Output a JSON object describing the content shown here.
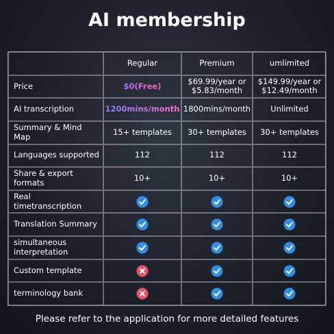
{
  "title": "AI membership",
  "table": {
    "header": [
      "",
      "Regular",
      "Premium",
      "umlimited"
    ],
    "rows": [
      [
        "Price",
        "$0(Free)",
        "$69.99/year or $5.83/month",
        "$149.99/year or $12.49/month"
      ],
      [
        "AI transcription",
        "1200mins/month",
        "1800mins/month",
        "Unlimited"
      ],
      [
        "Summary & Mind Map",
        "15+ templates",
        "30+ templates",
        "30+ templates"
      ],
      [
        "Languages supported",
        "112",
        "112",
        "112"
      ],
      [
        "Share & export formats",
        "10+",
        "10+",
        "10+"
      ],
      [
        "Real timetranscription",
        true,
        true,
        true
      ],
      [
        "Translation Summary",
        true,
        true,
        true
      ],
      [
        "simultaneous interpretation",
        true,
        true,
        true
      ],
      [
        "Custom template",
        false,
        true,
        true
      ],
      [
        "terminology bank",
        false,
        true,
        true
      ]
    ]
  },
  "footer": "Please refer to the application for more detailed features"
}
